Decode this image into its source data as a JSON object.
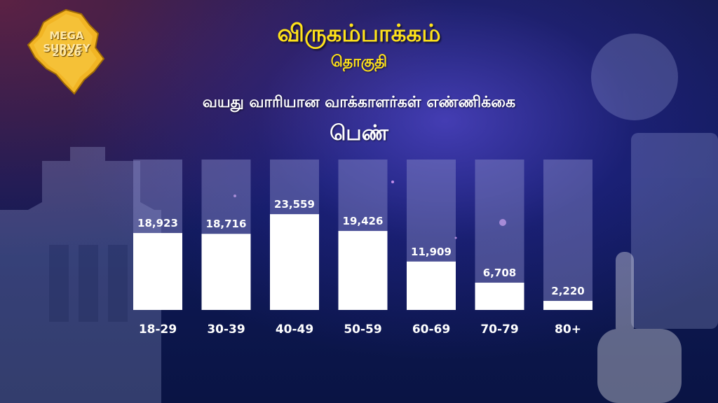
{
  "logo": {
    "line1": "MEGA SURVEY",
    "line2": "2026",
    "color": "#f2b524"
  },
  "header": {
    "title": "விருகம்பாக்கம்",
    "subtitle": "தொகுதி"
  },
  "chart_data": {
    "type": "bar",
    "title": "வயது வாரியான வாக்காளர்கள் எண்ணிக்கை",
    "series_label": "பெண்",
    "categories": [
      "18-29",
      "30-39",
      "40-49",
      "50-59",
      "60-69",
      "70-79",
      "80+"
    ],
    "values": [
      18923,
      18716,
      23559,
      19426,
      11909,
      6708,
      2220
    ],
    "value_labels": [
      "18,923",
      "18,716",
      "23,559",
      "19,426",
      "11,909",
      "6,708",
      "2,220"
    ],
    "ylim": [
      0,
      37000
    ],
    "grid": false,
    "bar_color": "#ffffff",
    "track_color": "#8a8cc8"
  }
}
